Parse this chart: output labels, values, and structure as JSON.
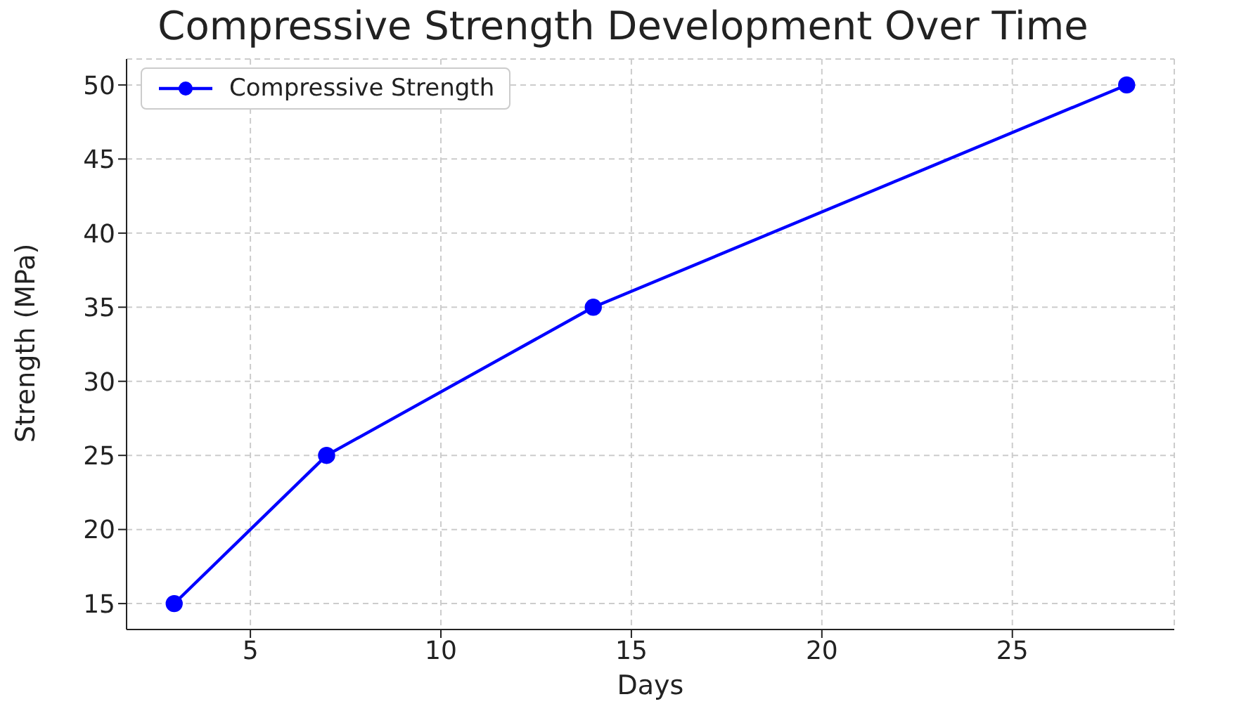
{
  "chart_data": {
    "type": "line",
    "title": "Compressive Strength Development Over Time",
    "xlabel": "Days",
    "ylabel": "Strength (MPa)",
    "x": [
      3,
      7,
      14,
      28
    ],
    "series": [
      {
        "name": "Compressive Strength",
        "color": "#0000ff",
        "values": [
          15,
          25,
          35,
          50
        ]
      }
    ],
    "xlim": [
      1.75,
      29.25
    ],
    "xticks": [
      5,
      10,
      15,
      20,
      25
    ],
    "ylim": [
      13.25,
      51.75
    ],
    "yticks": [
      15,
      20,
      25,
      30,
      35,
      40,
      45,
      50
    ],
    "grid": true,
    "legend": "top left",
    "marker": "circle",
    "line_style": "solid"
  }
}
